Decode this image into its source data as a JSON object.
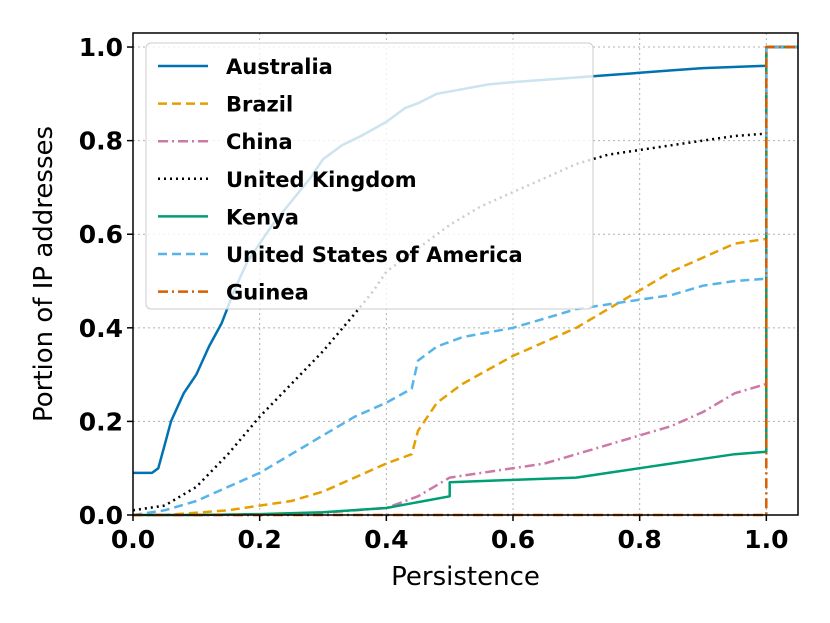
{
  "chart_data": {
    "type": "line",
    "title": "",
    "xlabel": "Persistence",
    "ylabel": "Portion of IP addresses",
    "xlim": [
      0.0,
      1.05
    ],
    "ylim": [
      0.0,
      1.03
    ],
    "xticks": [
      "0.0",
      "0.2",
      "0.4",
      "0.6",
      "0.8",
      "1.0"
    ],
    "yticks": [
      "0.0",
      "0.2",
      "0.4",
      "0.6",
      "0.8",
      "1.0"
    ],
    "grid": true,
    "legend_position": "top-left",
    "series": [
      {
        "name": "Australia",
        "color": "#0072b2",
        "style": "solid",
        "points": [
          [
            0.0,
            0.09
          ],
          [
            0.03,
            0.09
          ],
          [
            0.04,
            0.1
          ],
          [
            0.05,
            0.15
          ],
          [
            0.06,
            0.2
          ],
          [
            0.07,
            0.23
          ],
          [
            0.08,
            0.26
          ],
          [
            0.1,
            0.3
          ],
          [
            0.12,
            0.36
          ],
          [
            0.14,
            0.41
          ],
          [
            0.16,
            0.48
          ],
          [
            0.18,
            0.54
          ],
          [
            0.2,
            0.58
          ],
          [
            0.22,
            0.62
          ],
          [
            0.25,
            0.67
          ],
          [
            0.28,
            0.72
          ],
          [
            0.3,
            0.76
          ],
          [
            0.33,
            0.79
          ],
          [
            0.36,
            0.81
          ],
          [
            0.4,
            0.84
          ],
          [
            0.43,
            0.87
          ],
          [
            0.45,
            0.88
          ],
          [
            0.48,
            0.9
          ],
          [
            0.52,
            0.91
          ],
          [
            0.56,
            0.92
          ],
          [
            0.6,
            0.925
          ],
          [
            0.65,
            0.93
          ],
          [
            0.7,
            0.935
          ],
          [
            0.75,
            0.94
          ],
          [
            0.8,
            0.945
          ],
          [
            0.85,
            0.95
          ],
          [
            0.9,
            0.955
          ],
          [
            1.0,
            0.96
          ],
          [
            1.0,
            1.0
          ],
          [
            1.05,
            1.0
          ]
        ]
      },
      {
        "name": "Brazil",
        "color": "#e69f00",
        "style": "dashed",
        "points": [
          [
            0.0,
            0.0
          ],
          [
            0.05,
            0.0
          ],
          [
            0.1,
            0.005
          ],
          [
            0.15,
            0.01
          ],
          [
            0.2,
            0.02
          ],
          [
            0.25,
            0.03
          ],
          [
            0.3,
            0.05
          ],
          [
            0.35,
            0.08
          ],
          [
            0.4,
            0.11
          ],
          [
            0.44,
            0.13
          ],
          [
            0.45,
            0.18
          ],
          [
            0.48,
            0.24
          ],
          [
            0.52,
            0.28
          ],
          [
            0.56,
            0.31
          ],
          [
            0.6,
            0.34
          ],
          [
            0.65,
            0.37
          ],
          [
            0.7,
            0.4
          ],
          [
            0.75,
            0.44
          ],
          [
            0.8,
            0.48
          ],
          [
            0.85,
            0.52
          ],
          [
            0.9,
            0.55
          ],
          [
            0.95,
            0.58
          ],
          [
            1.0,
            0.59
          ],
          [
            1.0,
            1.0
          ],
          [
            1.05,
            1.0
          ]
        ]
      },
      {
        "name": "China",
        "color": "#cc79a7",
        "style": "dashdot",
        "points": [
          [
            0.0,
            0.0
          ],
          [
            0.2,
            0.0
          ],
          [
            0.3,
            0.005
          ],
          [
            0.4,
            0.015
          ],
          [
            0.45,
            0.04
          ],
          [
            0.5,
            0.08
          ],
          [
            0.55,
            0.09
          ],
          [
            0.6,
            0.1
          ],
          [
            0.65,
            0.11
          ],
          [
            0.7,
            0.13
          ],
          [
            0.75,
            0.15
          ],
          [
            0.8,
            0.17
          ],
          [
            0.85,
            0.19
          ],
          [
            0.9,
            0.22
          ],
          [
            0.95,
            0.26
          ],
          [
            1.0,
            0.28
          ],
          [
            1.0,
            1.0
          ],
          [
            1.05,
            1.0
          ]
        ]
      },
      {
        "name": "United Kingdom",
        "color": "#000000",
        "style": "dotted",
        "points": [
          [
            0.0,
            0.01
          ],
          [
            0.05,
            0.02
          ],
          [
            0.1,
            0.06
          ],
          [
            0.15,
            0.13
          ],
          [
            0.2,
            0.21
          ],
          [
            0.25,
            0.28
          ],
          [
            0.3,
            0.35
          ],
          [
            0.35,
            0.43
          ],
          [
            0.38,
            0.48
          ],
          [
            0.4,
            0.52
          ],
          [
            0.45,
            0.57
          ],
          [
            0.5,
            0.62
          ],
          [
            0.55,
            0.66
          ],
          [
            0.6,
            0.69
          ],
          [
            0.65,
            0.72
          ],
          [
            0.7,
            0.75
          ],
          [
            0.75,
            0.77
          ],
          [
            0.8,
            0.78
          ],
          [
            0.85,
            0.79
          ],
          [
            0.9,
            0.8
          ],
          [
            0.95,
            0.81
          ],
          [
            1.0,
            0.815
          ],
          [
            1.0,
            1.0
          ],
          [
            1.05,
            1.0
          ]
        ]
      },
      {
        "name": "Kenya",
        "color": "#009e73",
        "style": "solid",
        "points": [
          [
            0.0,
            0.0
          ],
          [
            0.1,
            0.0
          ],
          [
            0.2,
            0.002
          ],
          [
            0.3,
            0.006
          ],
          [
            0.4,
            0.015
          ],
          [
            0.44,
            0.025
          ],
          [
            0.46,
            0.03
          ],
          [
            0.5,
            0.04
          ],
          [
            0.5,
            0.07
          ],
          [
            0.6,
            0.075
          ],
          [
            0.7,
            0.08
          ],
          [
            0.75,
            0.09
          ],
          [
            0.8,
            0.1
          ],
          [
            0.85,
            0.11
          ],
          [
            0.9,
            0.12
          ],
          [
            0.95,
            0.13
          ],
          [
            1.0,
            0.135
          ],
          [
            1.0,
            1.0
          ],
          [
            1.05,
            1.0
          ]
        ]
      },
      {
        "name": "United States of America",
        "color": "#56b4e9",
        "style": "dashed",
        "points": [
          [
            0.0,
            0.0
          ],
          [
            0.05,
            0.01
          ],
          [
            0.1,
            0.03
          ],
          [
            0.15,
            0.06
          ],
          [
            0.2,
            0.09
          ],
          [
            0.25,
            0.13
          ],
          [
            0.3,
            0.17
          ],
          [
            0.35,
            0.21
          ],
          [
            0.4,
            0.24
          ],
          [
            0.44,
            0.27
          ],
          [
            0.45,
            0.33
          ],
          [
            0.48,
            0.36
          ],
          [
            0.52,
            0.38
          ],
          [
            0.56,
            0.39
          ],
          [
            0.6,
            0.4
          ],
          [
            0.65,
            0.42
          ],
          [
            0.7,
            0.44
          ],
          [
            0.75,
            0.45
          ],
          [
            0.8,
            0.46
          ],
          [
            0.85,
            0.47
          ],
          [
            0.9,
            0.49
          ],
          [
            0.95,
            0.5
          ],
          [
            1.0,
            0.505
          ],
          [
            1.0,
            1.0
          ],
          [
            1.05,
            1.0
          ]
        ]
      },
      {
        "name": "Guinea",
        "color": "#d55e00",
        "style": "dashdot",
        "points": [
          [
            0.0,
            0.0
          ],
          [
            1.0,
            0.0
          ],
          [
            1.0,
            1.0
          ],
          [
            1.05,
            1.0
          ]
        ]
      }
    ]
  }
}
